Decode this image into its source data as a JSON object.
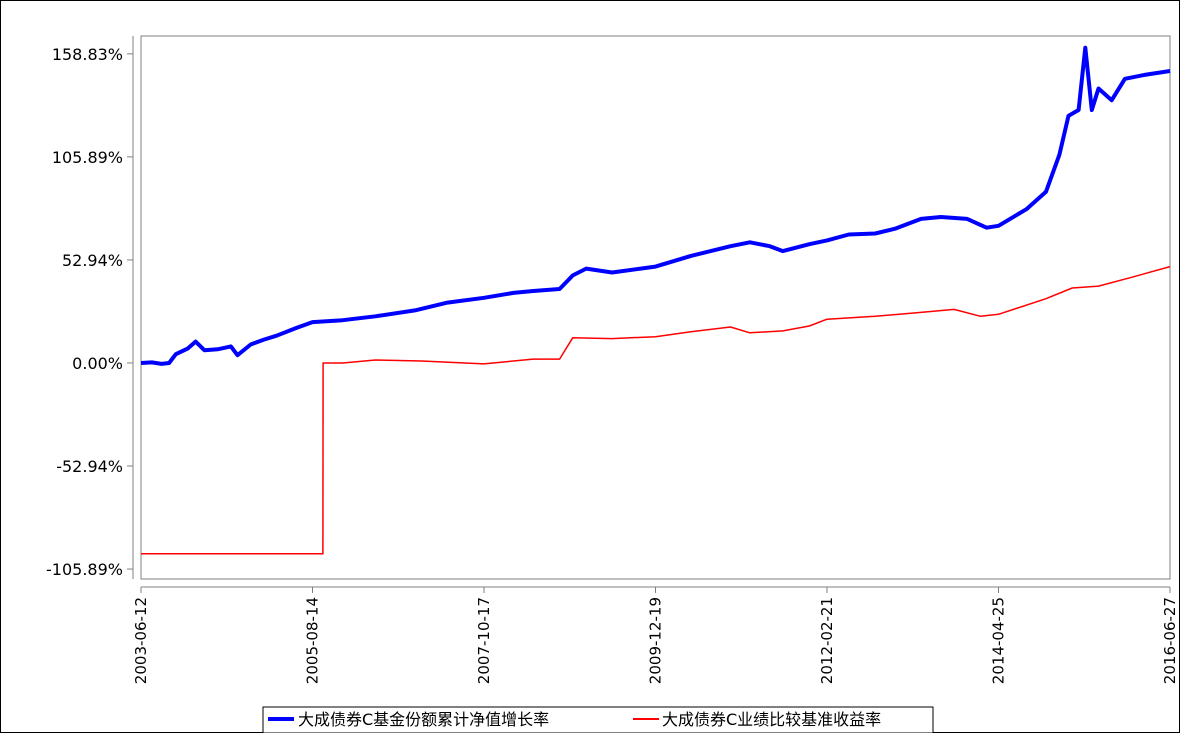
{
  "chart_data": {
    "type": "line",
    "x_ticks": [
      "2003-06-12",
      "2005-08-14",
      "2007-10-17",
      "2009-12-19",
      "2012-02-21",
      "2014-04-25",
      "2016-06-27"
    ],
    "y_ticks": [
      "158.83%",
      "105.89%",
      "52.94%",
      "0.00%",
      "-52.94%",
      "-105.89%"
    ],
    "y_tick_values": [
      158.83,
      105.89,
      52.94,
      0.0,
      -52.94,
      -105.89
    ],
    "xlim": [
      "2003-06-12",
      "2016-06-27"
    ],
    "ylim": [
      -111.0,
      168.0
    ],
    "grid": false,
    "legend_position": "bottom",
    "series": [
      {
        "name": "大成债券C基金份额累计净值增长率",
        "color": "#0000ff",
        "points": [
          [
            "2003-06-12",
            0.0
          ],
          [
            "2003-08-01",
            0.3
          ],
          [
            "2003-09-15",
            -0.5
          ],
          [
            "2003-10-20",
            0.0
          ],
          [
            "2003-11-20",
            4.5
          ],
          [
            "2004-01-15",
            7.5
          ],
          [
            "2004-02-20",
            11.0
          ],
          [
            "2004-04-01",
            6.5
          ],
          [
            "2004-06-01",
            7.0
          ],
          [
            "2004-08-01",
            8.5
          ],
          [
            "2004-09-01",
            4.0
          ],
          [
            "2004-11-01",
            9.5
          ],
          [
            "2005-01-01",
            12.0
          ],
          [
            "2005-03-01",
            14.0
          ],
          [
            "2005-06-01",
            18.0
          ],
          [
            "2005-08-14",
            21.0
          ],
          [
            "2006-01-01",
            22.0
          ],
          [
            "2006-06-01",
            24.0
          ],
          [
            "2006-12-01",
            27.0
          ],
          [
            "2007-05-01",
            31.0
          ],
          [
            "2007-10-17",
            33.5
          ],
          [
            "2008-03-01",
            36.0
          ],
          [
            "2008-06-01",
            37.0
          ],
          [
            "2008-10-01",
            38.0
          ],
          [
            "2008-12-01",
            45.0
          ],
          [
            "2009-02-01",
            48.5
          ],
          [
            "2009-06-01",
            46.5
          ],
          [
            "2009-12-19",
            49.5
          ],
          [
            "2010-06-01",
            55.0
          ],
          [
            "2010-12-01",
            60.0
          ],
          [
            "2011-03-01",
            62.0
          ],
          [
            "2011-06-01",
            60.0
          ],
          [
            "2011-08-01",
            57.5
          ],
          [
            "2011-12-01",
            61.0
          ],
          [
            "2012-02-21",
            63.0
          ],
          [
            "2012-06-01",
            66.0
          ],
          [
            "2012-10-01",
            66.5
          ],
          [
            "2013-01-01",
            69.0
          ],
          [
            "2013-05-01",
            74.0
          ],
          [
            "2013-08-01",
            75.0
          ],
          [
            "2013-12-01",
            74.0
          ],
          [
            "2014-03-01",
            69.5
          ],
          [
            "2014-04-25",
            70.5
          ],
          [
            "2014-09-01",
            79.0
          ],
          [
            "2014-12-01",
            88.0
          ],
          [
            "2015-02-01",
            107.0
          ],
          [
            "2015-03-15",
            127.0
          ],
          [
            "2015-05-01",
            130.0
          ],
          [
            "2015-06-01",
            162.0
          ],
          [
            "2015-07-01",
            130.0
          ],
          [
            "2015-08-01",
            141.0
          ],
          [
            "2015-10-01",
            135.0
          ],
          [
            "2015-12-01",
            146.0
          ],
          [
            "2016-03-01",
            148.0
          ],
          [
            "2016-06-27",
            150.0
          ]
        ]
      },
      {
        "name": "大成债券C业绩比较基准收益率",
        "color": "#ff0000",
        "points": [
          [
            "2003-06-12",
            -98.0
          ],
          [
            "2005-10-01",
            -98.0
          ],
          [
            "2005-10-02",
            0.0
          ],
          [
            "2006-01-01",
            0.0
          ],
          [
            "2006-06-01",
            1.5
          ],
          [
            "2007-01-01",
            1.0
          ],
          [
            "2007-10-17",
            -0.5
          ],
          [
            "2008-06-01",
            2.0
          ],
          [
            "2008-10-01",
            2.0
          ],
          [
            "2008-12-01",
            13.0
          ],
          [
            "2009-06-01",
            12.5
          ],
          [
            "2009-12-19",
            13.5
          ],
          [
            "2010-06-01",
            16.0
          ],
          [
            "2010-12-01",
            18.5
          ],
          [
            "2011-03-01",
            15.5
          ],
          [
            "2011-08-01",
            16.5
          ],
          [
            "2011-12-01",
            19.0
          ],
          [
            "2012-02-21",
            22.5
          ],
          [
            "2012-10-01",
            24.0
          ],
          [
            "2013-05-01",
            26.0
          ],
          [
            "2013-10-01",
            27.5
          ],
          [
            "2014-02-01",
            24.0
          ],
          [
            "2014-04-25",
            25.0
          ],
          [
            "2014-12-01",
            33.0
          ],
          [
            "2015-04-01",
            38.5
          ],
          [
            "2015-08-01",
            39.5
          ],
          [
            "2016-01-01",
            44.0
          ],
          [
            "2016-06-27",
            49.5
          ]
        ]
      }
    ]
  }
}
